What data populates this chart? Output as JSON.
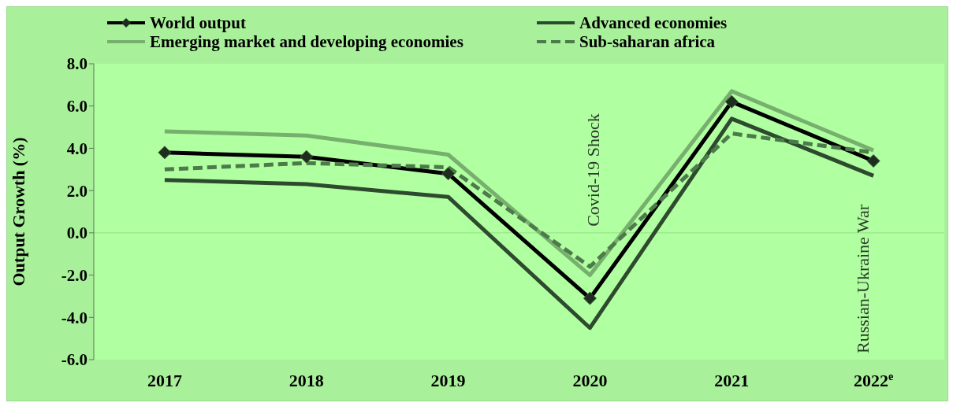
{
  "chart_data": {
    "type": "line",
    "ylabel": "Output Growth (%)",
    "categories": [
      "2017",
      "2018",
      "2019",
      "2020",
      "2021",
      "2022$^{e}$"
    ],
    "series": [
      {
        "name": "World output",
        "color": "#000000",
        "values": [
          3.8,
          3.6,
          2.8,
          -3.1,
          6.2,
          3.4
        ],
        "marker": "diamond",
        "line_style": "solid"
      },
      {
        "name": "Advanced economies",
        "color": "#2e4a2e",
        "values": [
          2.5,
          2.3,
          1.7,
          -4.5,
          5.4,
          2.7
        ],
        "marker": "none",
        "line_style": "solid"
      },
      {
        "name": "Emerging market and developing economies",
        "color": "#77b06e",
        "values": [
          4.8,
          4.6,
          3.7,
          -2.0,
          6.7,
          3.9
        ],
        "marker": "none",
        "line_style": "solid"
      },
      {
        "name": "Sub-saharan africa",
        "color": "#4d7a4a",
        "values": [
          3.0,
          3.3,
          3.1,
          -1.6,
          4.7,
          3.8
        ],
        "marker": "none",
        "line_style": "dashed"
      }
    ],
    "ylim": [
      -6,
      8
    ],
    "yticks": [
      {
        "value": -6,
        "label": "-6.0"
      },
      {
        "value": -4,
        "label": "-4.0"
      },
      {
        "value": -2,
        "label": "-2.0"
      },
      {
        "value": 0,
        "label": "0.0"
      },
      {
        "value": 2,
        "label": "2.0"
      },
      {
        "value": 4,
        "label": "4.0"
      },
      {
        "value": 6,
        "label": "6.0"
      },
      {
        "value": 8,
        "label": "8.0"
      }
    ],
    "ref_lines": [
      {
        "axis": "y",
        "value": 0,
        "color": "#98e088"
      }
    ],
    "annotations": [
      "Covid-19 Shock",
      "Russian-Ukraine War"
    ],
    "grid": false,
    "legend": "top"
  }
}
